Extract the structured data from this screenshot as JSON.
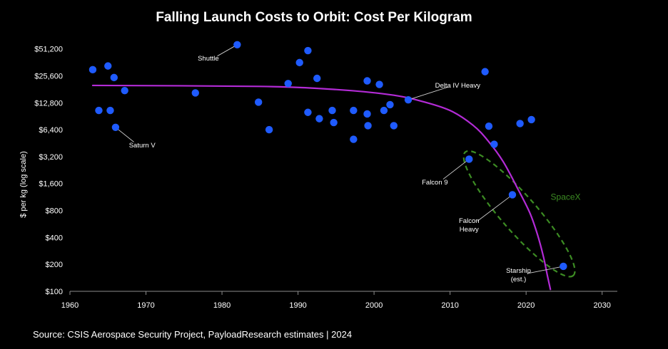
{
  "chart_data": {
    "type": "scatter",
    "title": "Falling Launch Costs to Orbit: Cost Per Kilogram",
    "xlabel": "",
    "ylabel": "$ per kg (log scale)",
    "xlim": [
      1960,
      2032
    ],
    "ylim": [
      100,
      60000
    ],
    "yscale": "log2",
    "grid": false,
    "x_ticks": [
      1960,
      1970,
      1980,
      1990,
      2000,
      2010,
      2020,
      2030
    ],
    "y_ticks": [
      {
        "value": 100,
        "label": "$100"
      },
      {
        "value": 200,
        "label": "$200"
      },
      {
        "value": 400,
        "label": "$400"
      },
      {
        "value": 800,
        "label": "$800"
      },
      {
        "value": 1600,
        "label": "$1,600"
      },
      {
        "value": 3200,
        "label": "$3,200"
      },
      {
        "value": 6400,
        "label": "$6,400"
      },
      {
        "value": 12800,
        "label": "$12,800"
      },
      {
        "value": 25600,
        "label": "$25,600"
      },
      {
        "value": 51200,
        "label": "$51,200"
      }
    ],
    "point_color": "#1f5bff",
    "trend_color": "#b32bd6",
    "points": [
      {
        "x": 1963.0,
        "y": 30000
      },
      {
        "x": 1963.8,
        "y": 10500
      },
      {
        "x": 1965.0,
        "y": 33000
      },
      {
        "x": 1965.3,
        "y": 10500
      },
      {
        "x": 1965.8,
        "y": 24500
      },
      {
        "x": 1966.0,
        "y": 6800
      },
      {
        "x": 1967.2,
        "y": 17500
      },
      {
        "x": 1976.5,
        "y": 16500
      },
      {
        "x": 1982.0,
        "y": 57000
      },
      {
        "x": 1984.8,
        "y": 13000
      },
      {
        "x": 1986.2,
        "y": 6400
      },
      {
        "x": 1988.7,
        "y": 21000
      },
      {
        "x": 1990.2,
        "y": 36000
      },
      {
        "x": 1991.3,
        "y": 10000
      },
      {
        "x": 1991.3,
        "y": 49000
      },
      {
        "x": 1992.5,
        "y": 24000
      },
      {
        "x": 1992.8,
        "y": 8500
      },
      {
        "x": 1994.5,
        "y": 10500
      },
      {
        "x": 1994.7,
        "y": 7700
      },
      {
        "x": 1997.3,
        "y": 10500
      },
      {
        "x": 1997.3,
        "y": 5000
      },
      {
        "x": 1999.1,
        "y": 22500
      },
      {
        "x": 1999.1,
        "y": 9600
      },
      {
        "x": 1999.2,
        "y": 7100
      },
      {
        "x": 2000.7,
        "y": 20500
      },
      {
        "x": 2001.3,
        "y": 10500
      },
      {
        "x": 2002.1,
        "y": 12200
      },
      {
        "x": 2002.6,
        "y": 7100
      },
      {
        "x": 2004.5,
        "y": 13800
      },
      {
        "x": 2012.5,
        "y": 3000
      },
      {
        "x": 2014.6,
        "y": 28500
      },
      {
        "x": 2015.1,
        "y": 7000
      },
      {
        "x": 2015.8,
        "y": 4400
      },
      {
        "x": 2018.2,
        "y": 1200
      },
      {
        "x": 2019.2,
        "y": 7500
      },
      {
        "x": 2020.7,
        "y": 8300
      },
      {
        "x": 2024.9,
        "y": 190
      }
    ],
    "trend_line": [
      {
        "x": 1963,
        "y": 20000
      },
      {
        "x": 1985,
        "y": 19500
      },
      {
        "x": 1995,
        "y": 18000
      },
      {
        "x": 2002,
        "y": 15800
      },
      {
        "x": 2006,
        "y": 13500
      },
      {
        "x": 2010,
        "y": 10500
      },
      {
        "x": 2013,
        "y": 7200
      },
      {
        "x": 2015,
        "y": 4800
      },
      {
        "x": 2017,
        "y": 2800
      },
      {
        "x": 2019,
        "y": 1350
      },
      {
        "x": 2020.5,
        "y": 750
      },
      {
        "x": 2021.5,
        "y": 430
      },
      {
        "x": 2022.3,
        "y": 240
      },
      {
        "x": 2022.8,
        "y": 150
      },
      {
        "x": 2023.2,
        "y": 105
      }
    ],
    "annotations": [
      {
        "text": "Saturn V",
        "x": 1966.0,
        "y": 6800,
        "text_x": 1969.5,
        "text_y": 4300
      },
      {
        "text": "Shuttle",
        "x": 1982.0,
        "y": 57000,
        "text_x": 1978.2,
        "text_y": 40000
      },
      {
        "text": "Delta IV Heavy",
        "x": 2004.5,
        "y": 13800,
        "text_x": 2011.0,
        "text_y": 20000
      },
      {
        "text": "Falcon 9",
        "x": 2012.5,
        "y": 3000,
        "text_x": 2008.0,
        "text_y": 1650
      },
      {
        "text": "Falcon Heavy",
        "x": 2018.2,
        "y": 1200,
        "text_x": 2012.5,
        "text_y": 560
      },
      {
        "text": "Starship (est.)",
        "x": 2024.9,
        "y": 190,
        "text_x": 2019.0,
        "text_y": 155
      }
    ],
    "group": {
      "label": "SpaceX",
      "color": "#3c8c23",
      "label_x": 2025.2,
      "label_y": 1050,
      "ellipse_from": {
        "x": 2012.0,
        "y": 3600
      },
      "ellipse_to": {
        "x": 2026.2,
        "y": 150
      }
    },
    "source": "Source: CSIS Aerospace Security Project, PayloadResearch estimates | 2024"
  }
}
